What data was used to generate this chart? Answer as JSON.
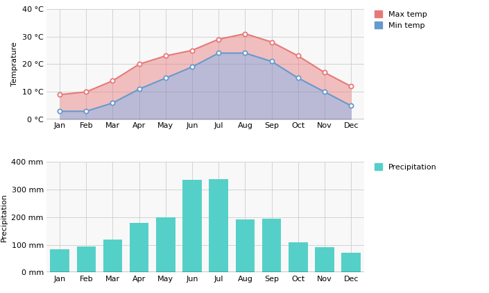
{
  "months": [
    "Jan",
    "Feb",
    "Mar",
    "Apr",
    "May",
    "Jun",
    "Jul",
    "Aug",
    "Sep",
    "Oct",
    "Nov",
    "Dec"
  ],
  "max_temp": [
    9,
    10,
    14,
    20,
    23,
    25,
    29,
    31,
    28,
    23,
    17,
    12
  ],
  "min_temp": [
    3,
    3,
    6,
    11,
    15,
    19,
    24,
    24,
    21,
    15,
    10,
    5
  ],
  "precip_values": [
    83,
    93,
    120,
    180,
    198,
    335,
    338,
    192,
    195,
    108,
    92,
    72
  ],
  "temp_ylim": [
    0,
    40
  ],
  "temp_yticks": [
    0,
    10,
    20,
    30,
    40
  ],
  "temp_ytick_labels": [
    "0 °C",
    "10 °C",
    "20 °C",
    "30 °C",
    "40 °C"
  ],
  "precip_ylim": [
    0,
    400
  ],
  "precip_yticks": [
    0,
    100,
    200,
    300,
    400
  ],
  "precip_ytick_labels": [
    "0 mm",
    "100 mm",
    "200 mm",
    "300 mm",
    "400 mm"
  ],
  "max_temp_color": "#e87878",
  "min_temp_color": "#6699cc",
  "fill_max_min_color": "#d09898",
  "fill_min_zero_color": "#8888bb",
  "bar_color": "#55d0c8",
  "background_color": "#ffffff",
  "plot_bg_color": "#f8f8f8",
  "grid_color": "#cccccc",
  "ylabel_temp": "Temprature",
  "ylabel_precip": "Precipitation",
  "legend_max": "Max temp",
  "legend_min": "Min temp",
  "legend_precip": "Precipitation"
}
